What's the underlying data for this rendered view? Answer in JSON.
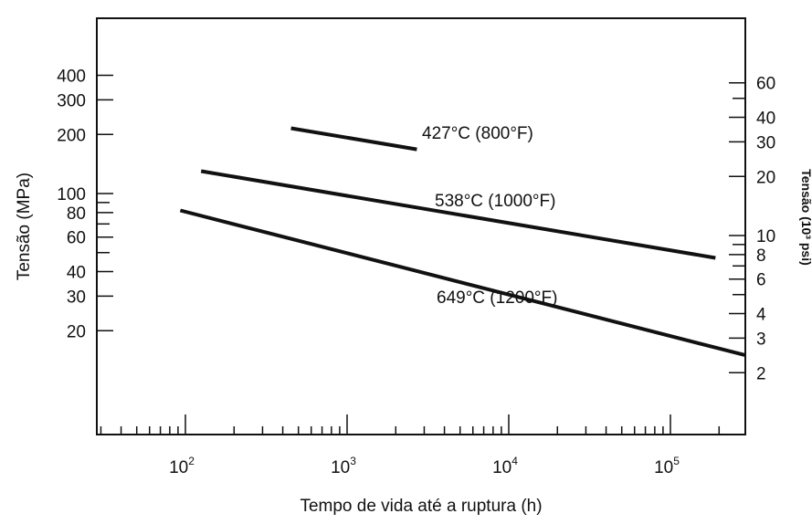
{
  "chart_data": {
    "type": "line",
    "title": "",
    "xlabel": "Tempo de vida até a ruptura (h)",
    "ylabel": "Tensão (MPa)",
    "y2label": "Tensão (10³ psi)",
    "x_scale": "log",
    "y_scale": "log",
    "xlim": [
      20,
      300000
    ],
    "ylim": [
      14,
      400
    ],
    "y2lim": [
      2,
      60
    ],
    "grid": false,
    "x_ticks": [
      {
        "value": 100,
        "base": "10",
        "exp": "2"
      },
      {
        "value": 1000,
        "base": "10",
        "exp": "3"
      },
      {
        "value": 10000,
        "base": "10",
        "exp": "4"
      },
      {
        "value": 100000,
        "base": "10",
        "exp": "5"
      }
    ],
    "y_ticks": [
      {
        "value": 20,
        "label": "20"
      },
      {
        "value": 30,
        "label": "30"
      },
      {
        "value": 40,
        "label": "40"
      },
      {
        "value": 60,
        "label": "60"
      },
      {
        "value": 80,
        "label": "80"
      },
      {
        "value": 100,
        "label": "100"
      },
      {
        "value": 200,
        "label": "200"
      },
      {
        "value": 300,
        "label": "300"
      },
      {
        "value": 400,
        "label": "400"
      }
    ],
    "y_minor_ticks": [
      50,
      70,
      90
    ],
    "y2_ticks": [
      {
        "value": 2,
        "label": "2"
      },
      {
        "value": 3,
        "label": "3"
      },
      {
        "value": 4,
        "label": "4"
      },
      {
        "value": 6,
        "label": "6"
      },
      {
        "value": 8,
        "label": "8"
      },
      {
        "value": 10,
        "label": "10"
      },
      {
        "value": 20,
        "label": "20"
      },
      {
        "value": 30,
        "label": "30"
      },
      {
        "value": 40,
        "label": "40"
      },
      {
        "value": 60,
        "label": "60"
      }
    ],
    "y2_minor_ticks": [
      5,
      7,
      9,
      50
    ],
    "series": [
      {
        "name": "427°C (800°F)",
        "x": [
          450,
          2700
        ],
        "y": [
          215,
          168
        ]
      },
      {
        "name": "538°C (1000°F)",
        "x": [
          125,
          190000
        ],
        "y": [
          130,
          47
        ]
      },
      {
        "name": "649°C (1200°F)",
        "x": [
          93,
          300000
        ],
        "y": [
          82,
          15
        ]
      }
    ]
  }
}
